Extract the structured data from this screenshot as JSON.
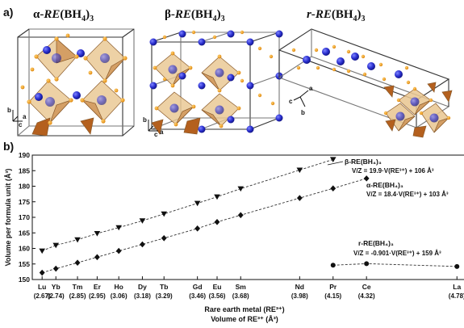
{
  "panel_a": {
    "label": "a)",
    "structures": [
      {
        "prefix": "α-",
        "re": "RE",
        "bh": "(BH",
        "sub": "4",
        "close": ")",
        "sub2": "3",
        "axes": {
          "b": "b",
          "c": "c",
          "a": "a"
        }
      },
      {
        "prefix": "β-",
        "re": "RE",
        "bh": "(BH",
        "sub": "4",
        "close": ")",
        "sub2": "3",
        "axes": {
          "b": "b",
          "c": "c",
          "a": "a"
        }
      },
      {
        "prefix": "r-",
        "re": "RE",
        "bh": "(BH",
        "sub": "4",
        "close": ")",
        "sub2": "3",
        "axes": {
          "b": "b",
          "c": "c",
          "a": "a"
        }
      }
    ],
    "colors": {
      "metal": "#2a2fcf",
      "boron": "#f0a020",
      "polyhedron": "#d99a5b",
      "cell": "#222222"
    }
  },
  "panel_b": {
    "label": "b)",
    "ylabel": "Volume per formula unit (Å³)",
    "xlabel_1": "Rare earth metal (RE³⁺)",
    "xlabel_2": "Volume of RE³⁺ (Å³)",
    "annotations": {
      "beta": {
        "name": "β-RE(BH₄)₃",
        "eq": "V/Z = 19.9·V(RE³⁺) + 106 Å³"
      },
      "alpha": {
        "name": "α-RE(BH₄)₃",
        "eq": "V/Z = 18.4·V(RE³⁺) + 103 Å³"
      },
      "r": {
        "name": "r-RE(BH₄)₃",
        "eq": "V/Z = -0.901·V(RE³⁺) + 159 Å³"
      }
    }
  },
  "chart_data": {
    "type": "scatter",
    "xlabel": "Rare earth metal (RE³⁺) / Volume of RE³⁺ (Å³)",
    "ylabel": "Volume per formula unit (Å³)",
    "xlim": [
      2.62,
      4.82
    ],
    "ylim": [
      150,
      190
    ],
    "yticks": [
      150,
      155,
      160,
      165,
      170,
      175,
      180,
      185,
      190
    ],
    "grid": false,
    "categories": [
      {
        "el": "Lu",
        "v": 2.67,
        "vl": "(2.67)"
      },
      {
        "el": "Yb",
        "v": 2.74,
        "vl": "(2.74)"
      },
      {
        "el": "Tm",
        "v": 2.85,
        "vl": "(2.85)"
      },
      {
        "el": "Er",
        "v": 2.95,
        "vl": "(2.95)"
      },
      {
        "el": "Ho",
        "v": 3.06,
        "vl": "(3.06)"
      },
      {
        "el": "Dy",
        "v": 3.18,
        "vl": "(3.18)"
      },
      {
        "el": "Tb",
        "v": 3.29,
        "vl": "(3.29)"
      },
      {
        "el": "Gd",
        "v": 3.46,
        "vl": "(3.46)"
      },
      {
        "el": "Eu",
        "v": 3.56,
        "vl": "(3.56)"
      },
      {
        "el": "Sm",
        "v": 3.68,
        "vl": "(3.68)"
      },
      {
        "el": "Nd",
        "v": 3.98,
        "vl": "(3.98)"
      },
      {
        "el": "Pr",
        "v": 4.15,
        "vl": "(4.15)"
      },
      {
        "el": "Ce",
        "v": 4.32,
        "vl": "(4.32)"
      },
      {
        "el": "La",
        "v": 4.78,
        "vl": "(4.78)"
      }
    ],
    "series": [
      {
        "marker": "triangle-down",
        "x": [
          2.67,
          2.74,
          2.85,
          2.95,
          3.06,
          3.18,
          3.29,
          3.46,
          3.56,
          3.68,
          3.98,
          4.15
        ],
        "y": [
          159.2,
          161.0,
          162.8,
          164.8,
          166.7,
          168.9,
          171.1,
          174.5,
          176.6,
          179.2,
          185.2,
          188.6
        ]
      },
      {
        "marker": "diamond",
        "x": [
          2.67,
          2.74,
          2.85,
          2.95,
          3.06,
          3.18,
          3.29,
          3.46,
          3.56,
          3.68,
          3.98,
          4.15,
          4.32
        ],
        "y": [
          152.2,
          153.5,
          155.4,
          157.2,
          159.2,
          161.3,
          163.3,
          166.4,
          168.5,
          170.7,
          176.2,
          179.3,
          182.5
        ]
      },
      {
        "marker": "circle",
        "x": [
          4.15,
          4.32,
          4.78
        ],
        "y": [
          154.6,
          155.1,
          154.2
        ]
      }
    ]
  }
}
